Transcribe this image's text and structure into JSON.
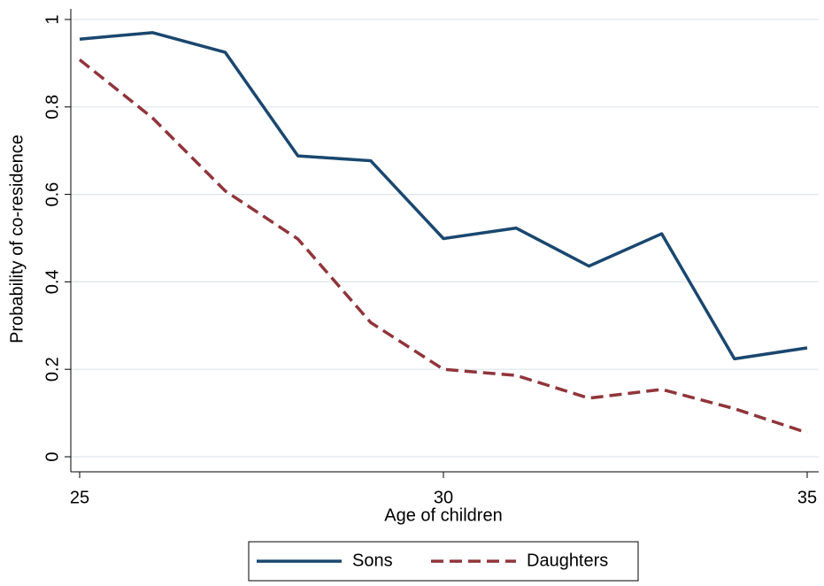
{
  "chart_data": {
    "type": "line",
    "x": [
      25,
      26,
      27,
      28,
      29,
      30,
      31,
      32,
      33,
      34,
      35
    ],
    "series": [
      {
        "name": "Sons",
        "color": "#1a476f",
        "dash": false,
        "values": [
          0.955,
          0.97,
          0.925,
          0.688,
          0.677,
          0.499,
          0.523,
          0.436,
          0.51,
          0.224,
          0.249
        ]
      },
      {
        "name": "Daughters",
        "color": "#90353b",
        "dash": true,
        "values": [
          0.908,
          0.775,
          0.608,
          0.498,
          0.307,
          0.2,
          0.186,
          0.134,
          0.154,
          0.11,
          0.055
        ]
      }
    ],
    "xlabel": "Age of children",
    "ylabel": "Probability of co-residence",
    "xlim": [
      25,
      35
    ],
    "ylim": [
      0,
      1
    ],
    "xticks": [
      25,
      30,
      35
    ],
    "yticks": [
      0,
      0.2,
      0.4,
      0.6,
      0.8,
      1
    ],
    "grid": true,
    "legend": "bottom"
  }
}
